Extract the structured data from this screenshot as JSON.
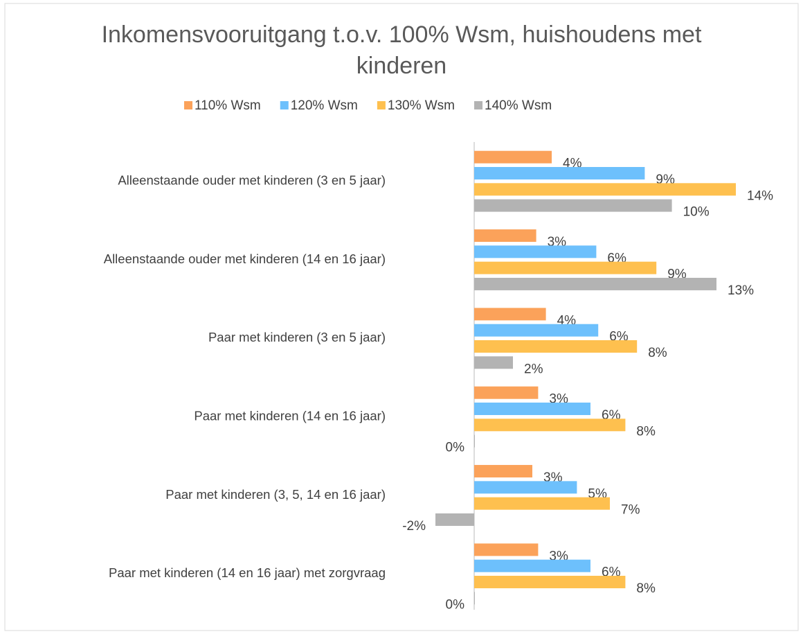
{
  "chart_data": {
    "type": "bar",
    "orientation": "horizontal",
    "title": "Inkomensvooruitgang t.o.v. 100% Wsm, huishoudens met kinderen",
    "categories": [
      "Alleenstaande ouder met kinderen (3 en 5 jaar)",
      "Alleenstaande ouder met kinderen (14 en 16 jaar)",
      "Paar met kinderen (3 en 5 jaar)",
      "Paar met kinderen (14 en 16 jaar)",
      "Paar met kinderen (3, 5, 14 en 16 jaar)",
      "Paar met kinderen (14 en 16 jaar) met zorgvraag"
    ],
    "series": [
      {
        "name": "110% Wsm",
        "color": "#fba25a",
        "values": [
          4.0,
          3.2,
          3.7,
          3.3,
          3.0,
          3.3
        ],
        "value_labels": [
          "4%",
          "3%",
          "4%",
          "3%",
          "3%",
          "3%"
        ]
      },
      {
        "name": "120% Wsm",
        "color": "#6dc0fc",
        "values": [
          8.8,
          6.3,
          6.4,
          6.0,
          5.3,
          6.0
        ],
        "value_labels": [
          "9%",
          "6%",
          "6%",
          "6%",
          "5%",
          "6%"
        ]
      },
      {
        "name": "130% Wsm",
        "color": "#fec04f",
        "values": [
          13.5,
          9.4,
          8.4,
          7.8,
          7.0,
          7.8
        ],
        "value_labels": [
          "14%",
          "9%",
          "8%",
          "8%",
          "7%",
          "8%"
        ]
      },
      {
        "name": "140% Wsm",
        "color": "#b3b3b3",
        "values": [
          10.2,
          12.5,
          2.0,
          0,
          -2.0,
          0
        ],
        "value_labels": [
          "10%",
          "13%",
          "2%",
          "0%",
          "-2%",
          "0%"
        ]
      }
    ],
    "xlim": [
      -2,
      16
    ],
    "legend": "top"
  }
}
